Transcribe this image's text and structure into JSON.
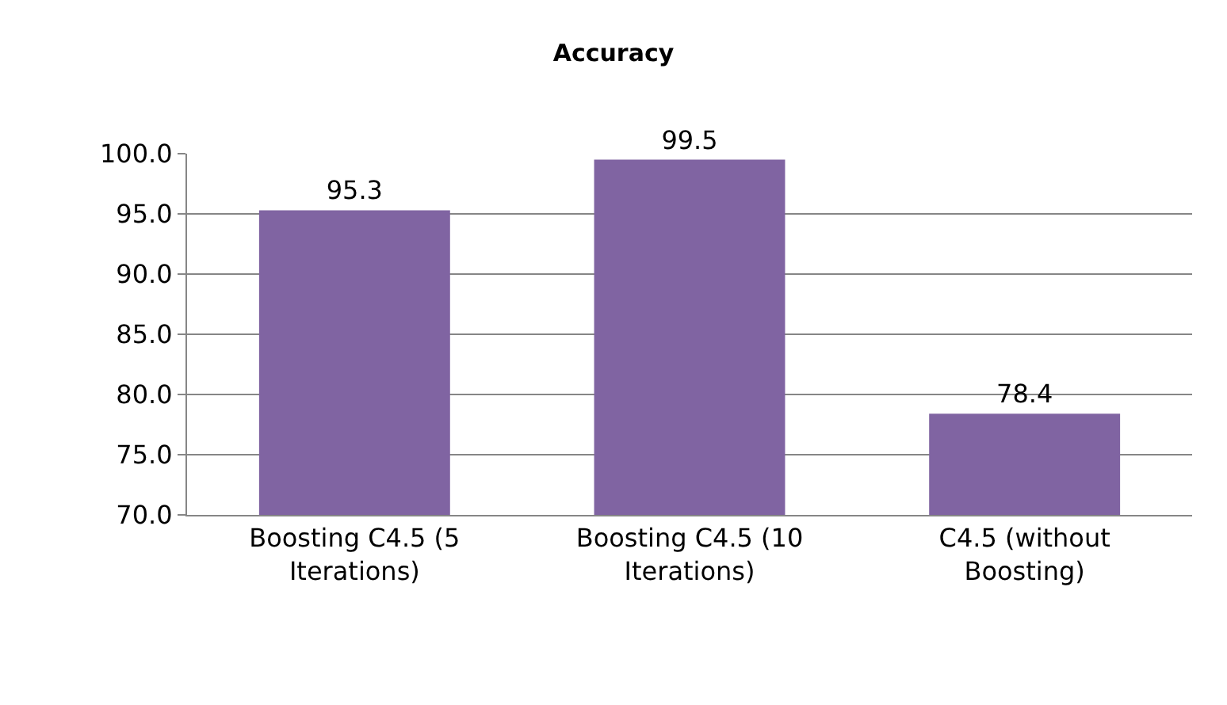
{
  "chart_data": {
    "type": "bar",
    "title": "Accuracy",
    "categories": [
      "Boosting C4.5 (5 Iterations)",
      "Boosting C4.5 (10 Iterations)",
      "C4.5 (without Boosting)"
    ],
    "values": [
      95.3,
      99.5,
      78.4
    ],
    "color": "#8064a2",
    "data_labels": true,
    "ylim": [
      70,
      100
    ],
    "yticks": [
      {
        "value": 70,
        "label": "70.0"
      },
      {
        "value": 75,
        "label": "75.0"
      },
      {
        "value": 80,
        "label": "80.0"
      },
      {
        "value": 85,
        "label": "85.0"
      },
      {
        "value": 90,
        "label": "90.0"
      },
      {
        "value": 95,
        "label": "95.0"
      },
      {
        "value": 100,
        "label": "100.0"
      }
    ],
    "grid": "y"
  }
}
